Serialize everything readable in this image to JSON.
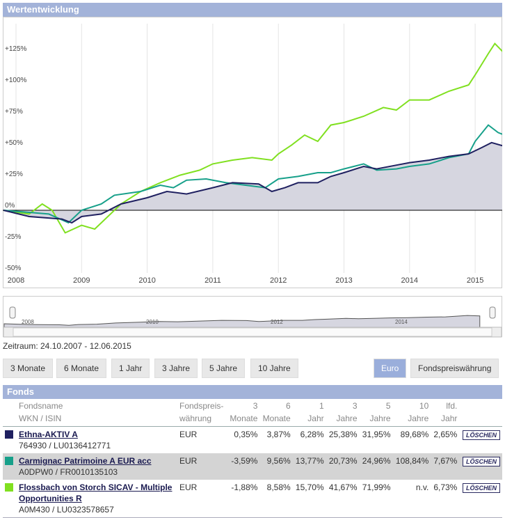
{
  "header": {
    "title": "Wertentwicklung"
  },
  "chart_data": {
    "type": "line",
    "title": "Wertentwicklung",
    "y_ticks": [
      "+125%",
      "+100%",
      "+75%",
      "+50%",
      "+25%",
      "0%",
      "-25%",
      "-50%"
    ],
    "y_tick_values": [
      125,
      100,
      75,
      50,
      25,
      0,
      -25,
      -50
    ],
    "x_ticks": [
      "2008",
      "2009",
      "2010",
      "2011",
      "2012",
      "2013",
      "2014",
      "2015"
    ],
    "ylim": [
      -55,
      145
    ],
    "xlim": [
      2007.81,
      2015.45
    ],
    "series": [
      {
        "name": "Ethna-AKTIV A",
        "color": "#1f2060",
        "area": true,
        "points": [
          [
            2007.81,
            0
          ],
          [
            2008.2,
            -5
          ],
          [
            2008.7,
            -7
          ],
          [
            2008.85,
            -10
          ],
          [
            2009.0,
            -5
          ],
          [
            2009.3,
            -3
          ],
          [
            2009.6,
            5
          ],
          [
            2010,
            10
          ],
          [
            2010.3,
            15
          ],
          [
            2010.6,
            13
          ],
          [
            2011,
            18
          ],
          [
            2011.3,
            22
          ],
          [
            2011.7,
            21
          ],
          [
            2011.9,
            15
          ],
          [
            2012.1,
            18
          ],
          [
            2012.3,
            22
          ],
          [
            2012.6,
            22
          ],
          [
            2012.8,
            27
          ],
          [
            2013,
            30
          ],
          [
            2013.3,
            35
          ],
          [
            2013.5,
            33
          ],
          [
            2013.8,
            36
          ],
          [
            2014,
            38
          ],
          [
            2014.3,
            40
          ],
          [
            2014.6,
            43
          ],
          [
            2014.9,
            45
          ],
          [
            2015.1,
            50
          ],
          [
            2015.25,
            54
          ],
          [
            2015.45,
            51
          ]
        ]
      },
      {
        "name": "Carmignac Patrimoine A EUR acc",
        "color": "#17a08a",
        "points": [
          [
            2007.81,
            0
          ],
          [
            2008.5,
            -3
          ],
          [
            2008.8,
            -10
          ],
          [
            2009,
            0
          ],
          [
            2009.3,
            5
          ],
          [
            2009.5,
            12
          ],
          [
            2009.9,
            15
          ],
          [
            2010.2,
            20
          ],
          [
            2010.4,
            18
          ],
          [
            2010.6,
            24
          ],
          [
            2010.9,
            25
          ],
          [
            2011.2,
            22
          ],
          [
            2011.5,
            20
          ],
          [
            2011.8,
            18
          ],
          [
            2012,
            25
          ],
          [
            2012.3,
            27
          ],
          [
            2012.6,
            30
          ],
          [
            2012.8,
            30
          ],
          [
            2013,
            33
          ],
          [
            2013.3,
            37
          ],
          [
            2013.5,
            32
          ],
          [
            2013.8,
            33
          ],
          [
            2014,
            35
          ],
          [
            2014.3,
            37
          ],
          [
            2014.6,
            42
          ],
          [
            2014.9,
            45
          ],
          [
            2015.0,
            55
          ],
          [
            2015.2,
            68
          ],
          [
            2015.35,
            62
          ],
          [
            2015.45,
            60
          ]
        ]
      },
      {
        "name": "Flossbach von Storch SICAV - Multiple Opportunities R",
        "color": "#80e020",
        "points": [
          [
            2007.81,
            0
          ],
          [
            2008.2,
            -3
          ],
          [
            2008.4,
            5
          ],
          [
            2008.55,
            0
          ],
          [
            2008.75,
            -18
          ],
          [
            2009.0,
            -12
          ],
          [
            2009.2,
            -15
          ],
          [
            2009.6,
            5
          ],
          [
            2009.9,
            15
          ],
          [
            2010.2,
            22
          ],
          [
            2010.5,
            28
          ],
          [
            2010.8,
            32
          ],
          [
            2011.0,
            37
          ],
          [
            2011.3,
            40
          ],
          [
            2011.6,
            42
          ],
          [
            2011.9,
            40
          ],
          [
            2012.0,
            45
          ],
          [
            2012.2,
            52
          ],
          [
            2012.4,
            60
          ],
          [
            2012.6,
            55
          ],
          [
            2012.8,
            68
          ],
          [
            2013.0,
            70
          ],
          [
            2013.3,
            75
          ],
          [
            2013.6,
            82
          ],
          [
            2013.8,
            80
          ],
          [
            2014.0,
            88
          ],
          [
            2014.3,
            88
          ],
          [
            2014.6,
            95
          ],
          [
            2014.9,
            100
          ],
          [
            2015.0,
            108
          ],
          [
            2015.2,
            125
          ],
          [
            2015.3,
            133
          ],
          [
            2015.45,
            125
          ]
        ]
      }
    ]
  },
  "navigator": {
    "labels": [
      "2008",
      "2010",
      "2012",
      "2014"
    ]
  },
  "zeitraum": "Zeitraum: 24.10.2007 - 12.06.2015",
  "ranges": [
    "3 Monate",
    "6 Monate",
    "1 Jahr",
    "3 Jahre",
    "5 Jahre",
    "10 Jahre"
  ],
  "currency": {
    "euro": "Euro",
    "fund": "Fondspreiswährung"
  },
  "fonds": {
    "title": "Fonds",
    "headers": [
      [
        "Fondsname",
        "WKN / ISIN"
      ],
      [
        "Fondspreis-",
        "währung"
      ],
      [
        "3",
        "Monate"
      ],
      [
        "6",
        "Monate"
      ],
      [
        "1",
        "Jahr"
      ],
      [
        "3",
        "Jahre"
      ],
      [
        "5",
        "Jahre"
      ],
      [
        "10",
        "Jahre"
      ],
      [
        "lfd.",
        "Jahr"
      ]
    ],
    "delete_label": "LÖSCHEN",
    "rows": [
      {
        "color": "#1f2060",
        "name": "Ethna-AKTIV A",
        "ids": "764930 / LU0136412771",
        "cur": "EUR",
        "vals": [
          "0,35%",
          "3,87%",
          "6,28%",
          "25,38%",
          "31,95%",
          "89,68%",
          "2,65%"
        ]
      },
      {
        "color": "#17a08a",
        "name": "Carmignac Patrimoine A EUR acc",
        "ids": "A0DPW0 / FR0010135103",
        "cur": "EUR",
        "vals": [
          "-3,59%",
          "9,56%",
          "13,77%",
          "20,73%",
          "24,96%",
          "108,84%",
          "7,67%"
        ]
      },
      {
        "color": "#80e020",
        "name": "Flossbach von Storch SICAV - Multiple Opportunities R",
        "ids": "A0M430 / LU0323578657",
        "cur": "EUR",
        "vals": [
          "-1,88%",
          "8,58%",
          "15,70%",
          "41,67%",
          "71,99%",
          "n.v.",
          "6,73%"
        ]
      }
    ]
  }
}
